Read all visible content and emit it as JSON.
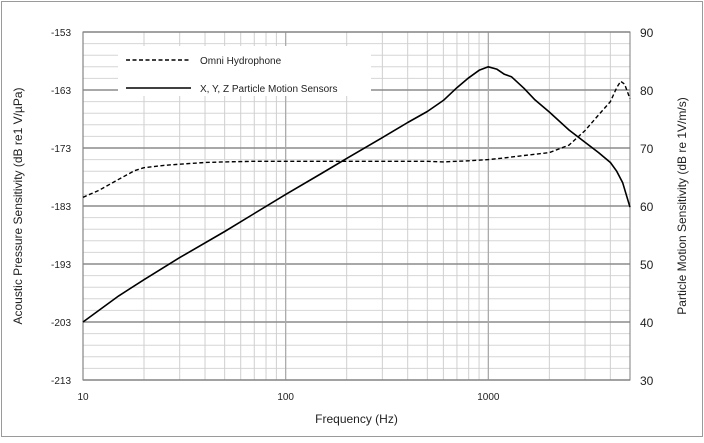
{
  "chart_data": {
    "type": "line",
    "xscale": "log",
    "xlim": [
      10,
      5000
    ],
    "x_ticks": [
      10,
      100,
      1000
    ],
    "x_tick_labels": [
      "10",
      "100",
      "1000"
    ],
    "xlabel": "Frequency (Hz)",
    "ylabel_left": "Acoustic Pressure Sensitivity (dB re1 V/µPa)",
    "ylabel_right": "Particle Motion Sensitivity (dB re 1V/m/s)",
    "ylim_left": [
      -213,
      -153
    ],
    "ylim_right": [
      30,
      90
    ],
    "y_ticks_left": [
      -153,
      -163,
      -173,
      -183,
      -193,
      -203,
      -213
    ],
    "y_ticks_right": [
      90,
      80,
      70,
      60,
      50,
      40,
      30
    ],
    "grid": true,
    "legend_position": "top-left",
    "series": [
      {
        "name": "Omni Hydrophone",
        "axis": "left",
        "style": "dashed",
        "color": "#000000",
        "x": [
          10,
          12,
          15,
          18,
          20,
          25,
          30,
          40,
          50,
          70,
          100,
          150,
          200,
          300,
          400,
          500,
          600,
          700,
          800,
          1000,
          1200,
          1500,
          2000,
          2500,
          3000,
          3500,
          4000,
          4300,
          4500,
          4700,
          5000
        ],
        "y": [
          -181.5,
          -180.3,
          -178.4,
          -176.9,
          -176.4,
          -176.0,
          -175.8,
          -175.5,
          -175.4,
          -175.3,
          -175.3,
          -175.3,
          -175.3,
          -175.3,
          -175.3,
          -175.3,
          -175.4,
          -175.3,
          -175.2,
          -175.0,
          -174.7,
          -174.3,
          -173.8,
          -172.5,
          -170.0,
          -167.3,
          -165.0,
          -162.6,
          -161.5,
          -162.0,
          -164.5
        ]
      },
      {
        "name": "X, Y, Z Particle Motion Sensors",
        "axis": "right",
        "style": "solid",
        "color": "#000000",
        "x": [
          10,
          15,
          20,
          30,
          50,
          70,
          100,
          150,
          200,
          300,
          400,
          500,
          600,
          700,
          800,
          900,
          1000,
          1100,
          1200,
          1300,
          1500,
          1700,
          2000,
          2500,
          3000,
          3500,
          4000,
          4300,
          4600,
          5000
        ],
        "y": [
          40.0,
          44.5,
          47.3,
          51.1,
          55.6,
          58.7,
          62.0,
          65.6,
          68.2,
          71.8,
          74.4,
          76.3,
          78.2,
          80.4,
          82.1,
          83.4,
          84.0,
          83.6,
          82.7,
          82.3,
          80.3,
          78.3,
          76.2,
          73.1,
          71.0,
          69.2,
          67.5,
          66.0,
          64.0,
          59.8
        ]
      }
    ]
  }
}
